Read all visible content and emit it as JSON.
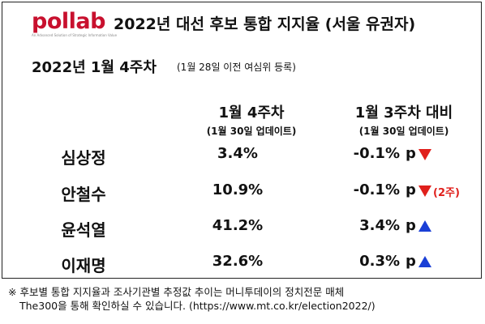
{
  "logo": {
    "text": "pollab",
    "sub": "An Advanced Solution of Strategic Information Value"
  },
  "title": "2022년 대선 후보 통합 지지율 (서울 유권자)",
  "week": {
    "label": "2022년 1월 4주차",
    "note": "(1월 28일 이전 여심위 등록)"
  },
  "columns": {
    "current": {
      "title": "1월 4주차",
      "sub": "(1월 30일 업데이트)"
    },
    "change": {
      "title": "1월 3주차 대비",
      "sub": "(1월 30일 업데이트)"
    }
  },
  "rows": [
    {
      "name": "심상정",
      "value": "3.4%",
      "change": "-0.1%",
      "p": "p",
      "direction": "down",
      "note": ""
    },
    {
      "name": "안철수",
      "value": "10.9%",
      "change": "-0.1%",
      "p": "p",
      "direction": "down",
      "note": "(2주)"
    },
    {
      "name": "윤석열",
      "value": "41.2%",
      "change": "3.4%",
      "p": "p",
      "direction": "up",
      "note": ""
    },
    {
      "name": "이재명",
      "value": "32.6%",
      "change": "0.3%",
      "p": "p",
      "direction": "up",
      "note": ""
    }
  ],
  "footnote": {
    "line1": "※ 후보별 통합 지지율과 조사기관별 추정값 추이는 머니투데이의 정치전문 매체",
    "line2": "The300을 통해 확인하실 수 있습니다. (https://www.mt.co.kr/election2022/)"
  },
  "colors": {
    "brand": "#c8102e",
    "down": "#e0201c",
    "up": "#1a3fd6"
  }
}
